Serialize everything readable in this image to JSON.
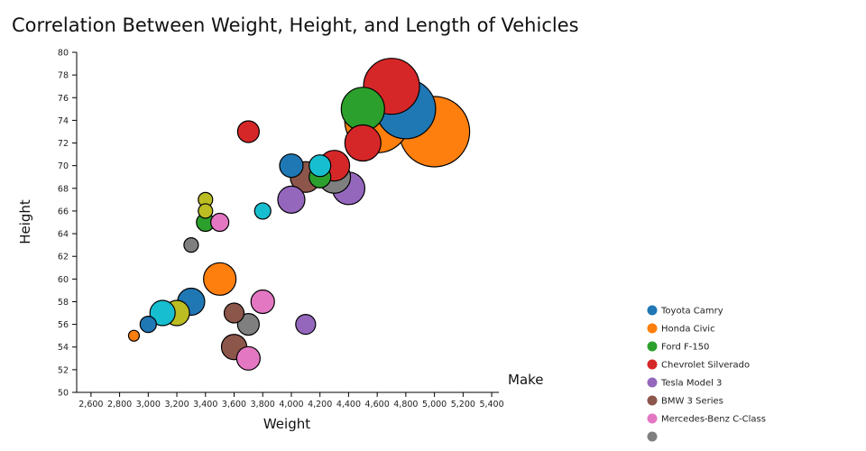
{
  "chart_data": {
    "type": "scatter",
    "title": "Correlation Between Weight, Height, and Length of Vehicles",
    "xlabel": "Weight",
    "ylabel": "Height",
    "legend_title": "Make",
    "legend_placement": "bottom-right",
    "xlim": [
      2500,
      5450
    ],
    "ylim": [
      50,
      80
    ],
    "xticks": [
      2600,
      2800,
      3000,
      3200,
      3400,
      3600,
      3800,
      4000,
      4200,
      4400,
      4600,
      4800,
      5000,
      5200,
      5400
    ],
    "yticks": [
      50,
      52,
      54,
      56,
      58,
      60,
      62,
      64,
      66,
      68,
      70,
      72,
      74,
      76,
      78,
      80
    ],
    "size_encodes": "Length",
    "series": [
      {
        "name": "Toyota Camry",
        "color": "#1f77b4",
        "points": [
          [
            4800,
            75,
            33
          ],
          [
            4000,
            70,
            13
          ],
          [
            3300,
            58,
            15
          ],
          [
            3000,
            56,
            9
          ]
        ]
      },
      {
        "name": "Honda Civic",
        "color": "#ff7f0e",
        "points": [
          [
            5000,
            73,
            39
          ],
          [
            4600,
            74,
            36
          ],
          [
            3500,
            60,
            18
          ],
          [
            2900,
            55,
            6
          ]
        ]
      },
      {
        "name": "Ford F-150",
        "color": "#2ca02c",
        "points": [
          [
            4500,
            75,
            24
          ],
          [
            4200,
            69,
            12
          ],
          [
            3400,
            65,
            10
          ]
        ]
      },
      {
        "name": "Chevrolet Silverado",
        "color": "#d62728",
        "points": [
          [
            4700,
            77,
            31
          ],
          [
            4500,
            72,
            20
          ],
          [
            3700,
            73,
            12
          ],
          [
            4300,
            70,
            17
          ]
        ]
      },
      {
        "name": "Tesla Model 3",
        "color": "#9467bd",
        "points": [
          [
            4400,
            68,
            18
          ],
          [
            4000,
            67,
            15
          ],
          [
            4100,
            56,
            11
          ]
        ]
      },
      {
        "name": "BMW 3 Series",
        "color": "#8c564b",
        "points": [
          [
            4100,
            69,
            17
          ],
          [
            3600,
            57,
            11
          ],
          [
            3600,
            54,
            14
          ]
        ]
      },
      {
        "name": "Mercedes-Benz C-Class",
        "color": "#e377c2",
        "points": [
          [
            3500,
            65,
            10
          ],
          [
            3800,
            58,
            13
          ],
          [
            3700,
            53,
            13
          ]
        ]
      },
      {
        "name": "",
        "color": "#7f7f7f",
        "points": [
          [
            4300,
            69,
            18
          ],
          [
            3700,
            56,
            12
          ],
          [
            3300,
            63,
            8
          ]
        ]
      },
      {
        "name": "",
        "color": "#bcbd22",
        "points": [
          [
            3400,
            67,
            8
          ],
          [
            3400,
            66,
            8
          ],
          [
            3200,
            57,
            14
          ]
        ]
      },
      {
        "name": "",
        "color": "#17becf",
        "points": [
          [
            4200,
            70,
            12
          ],
          [
            3800,
            66,
            9
          ],
          [
            3100,
            57,
            14
          ]
        ]
      }
    ]
  }
}
